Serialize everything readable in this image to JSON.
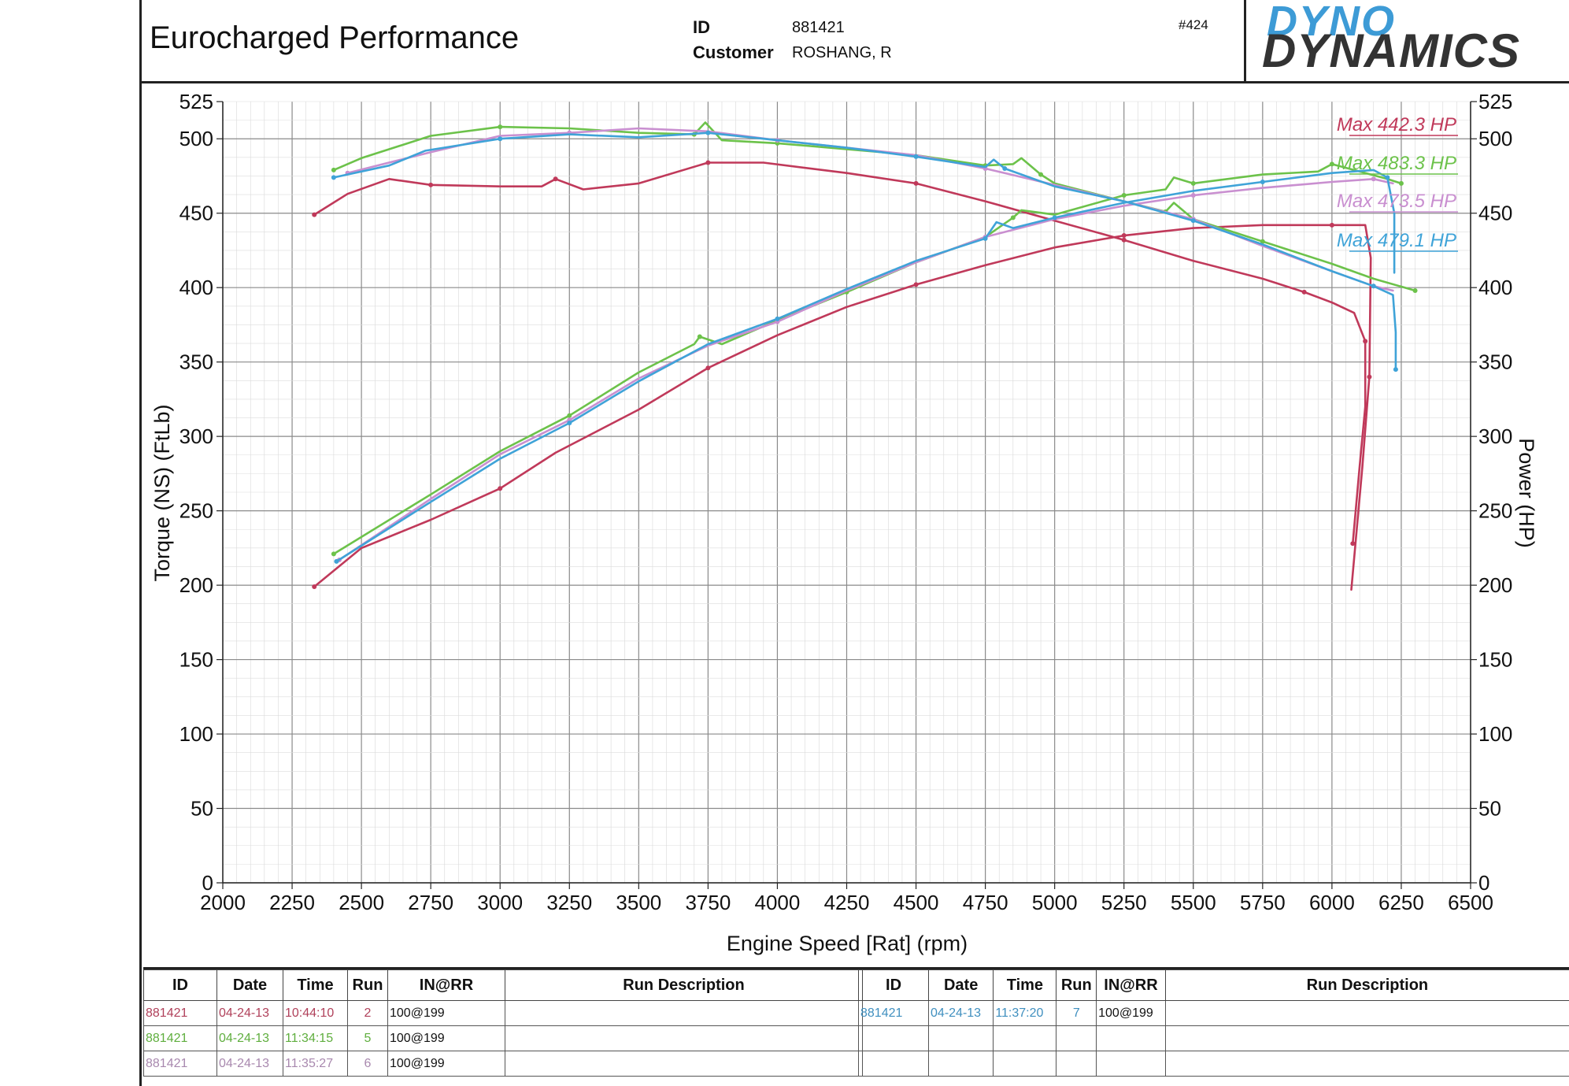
{
  "header": {
    "company": "Eurocharged Performance",
    "id_label": "ID",
    "id_value": "881421",
    "customer_label": "Customer",
    "customer_value": "ROSHANG, R",
    "sheet_number": "#424",
    "logo_line1": "DYNO",
    "logo_line2": "DYNAMICS"
  },
  "colors": {
    "run2": "#c0395a",
    "run5": "#6cc24a",
    "run6": "#c98fd0",
    "run7": "#3fa3d8",
    "grid": "#a0a0a0"
  },
  "chart_data": {
    "type": "line",
    "xlabel": "Engine Speed [Rat] (rpm)",
    "ylabel_left": "Torque (NS) (FtLb)",
    "ylabel_right": "Power (HP)",
    "xlim": [
      2000,
      6500
    ],
    "ylim": [
      0,
      525
    ],
    "x_ticks": [
      2000,
      2250,
      2500,
      2750,
      3000,
      3250,
      3500,
      3750,
      4000,
      4250,
      4500,
      4750,
      5000,
      5250,
      5500,
      5750,
      6000,
      6250,
      6500
    ],
    "y_ticks": [
      0,
      50,
      100,
      150,
      200,
      250,
      300,
      350,
      400,
      450,
      500,
      525
    ],
    "grid": true,
    "legend_position": "top-right",
    "series": [
      {
        "name": "Max 442.3 HP",
        "run": "2",
        "torque": [
          [
            2330,
            449
          ],
          [
            2450,
            463
          ],
          [
            2600,
            473
          ],
          [
            2750,
            469
          ],
          [
            3000,
            468
          ],
          [
            3150,
            468
          ],
          [
            3200,
            473
          ],
          [
            3300,
            466
          ],
          [
            3500,
            470
          ],
          [
            3750,
            484
          ],
          [
            3950,
            484
          ],
          [
            4250,
            477
          ],
          [
            4500,
            470
          ],
          [
            4750,
            458
          ],
          [
            5000,
            445
          ],
          [
            5250,
            432
          ],
          [
            5500,
            418
          ],
          [
            5750,
            406
          ],
          [
            5900,
            397
          ],
          [
            6000,
            390
          ],
          [
            6080,
            383
          ],
          [
            6120,
            364
          ],
          [
            6120,
            320
          ],
          [
            6100,
            280
          ],
          [
            6075,
            228
          ]
        ],
        "power": [
          [
            2330,
            199
          ],
          [
            2500,
            225
          ],
          [
            2750,
            244
          ],
          [
            3000,
            265
          ],
          [
            3200,
            289
          ],
          [
            3500,
            318
          ],
          [
            3750,
            346
          ],
          [
            4000,
            368
          ],
          [
            4250,
            387
          ],
          [
            4500,
            402
          ],
          [
            4750,
            415
          ],
          [
            5000,
            427
          ],
          [
            5250,
            435
          ],
          [
            5500,
            440
          ],
          [
            5750,
            442
          ],
          [
            6000,
            442
          ],
          [
            6120,
            442
          ],
          [
            6140,
            420
          ],
          [
            6135,
            340
          ],
          [
            6110,
            280
          ],
          [
            6070,
            197
          ]
        ]
      },
      {
        "name": "Max 483.3 HP",
        "run": "5",
        "torque": [
          [
            2400,
            479
          ],
          [
            2500,
            487
          ],
          [
            2750,
            502
          ],
          [
            3000,
            508
          ],
          [
            3250,
            507
          ],
          [
            3500,
            504
          ],
          [
            3700,
            503
          ],
          [
            3740,
            511
          ],
          [
            3800,
            499
          ],
          [
            4000,
            497
          ],
          [
            4250,
            493
          ],
          [
            4500,
            489
          ],
          [
            4750,
            482
          ],
          [
            4850,
            483
          ],
          [
            4880,
            487
          ],
          [
            4950,
            476
          ],
          [
            5000,
            470
          ],
          [
            5250,
            458
          ],
          [
            5400,
            451
          ],
          [
            5430,
            457
          ],
          [
            5500,
            446
          ],
          [
            5750,
            431
          ],
          [
            6000,
            416
          ],
          [
            6150,
            406
          ],
          [
            6300,
            398
          ]
        ],
        "power": [
          [
            2400,
            221
          ],
          [
            2750,
            261
          ],
          [
            3000,
            290
          ],
          [
            3250,
            314
          ],
          [
            3500,
            343
          ],
          [
            3700,
            362
          ],
          [
            3720,
            367
          ],
          [
            3800,
            362
          ],
          [
            4000,
            378
          ],
          [
            4250,
            397
          ],
          [
            4500,
            417
          ],
          [
            4750,
            434
          ],
          [
            4850,
            447
          ],
          [
            4880,
            452
          ],
          [
            5000,
            449
          ],
          [
            5250,
            462
          ],
          [
            5400,
            466
          ],
          [
            5430,
            474
          ],
          [
            5500,
            470
          ],
          [
            5750,
            476
          ],
          [
            5950,
            478
          ],
          [
            6000,
            483
          ],
          [
            6100,
            478
          ],
          [
            6200,
            473
          ],
          [
            6250,
            470
          ]
        ]
      },
      {
        "name": "Max 473.5 HP",
        "run": "6",
        "torque": [
          [
            2450,
            477
          ],
          [
            2750,
            491
          ],
          [
            3000,
            502
          ],
          [
            3250,
            504
          ],
          [
            3500,
            507
          ],
          [
            3750,
            505
          ],
          [
            4000,
            499
          ],
          [
            4250,
            494
          ],
          [
            4500,
            489
          ],
          [
            4750,
            480
          ],
          [
            5000,
            469
          ],
          [
            5250,
            458
          ],
          [
            5500,
            446
          ],
          [
            5750,
            428
          ],
          [
            6000,
            411
          ],
          [
            6150,
            401
          ],
          [
            6220,
            398
          ]
        ],
        "power": [
          [
            2420,
            217
          ],
          [
            2750,
            258
          ],
          [
            3000,
            288
          ],
          [
            3250,
            311
          ],
          [
            3500,
            339
          ],
          [
            3750,
            361
          ],
          [
            4000,
            377
          ],
          [
            4250,
            398
          ],
          [
            4500,
            417
          ],
          [
            4750,
            434
          ],
          [
            5000,
            446
          ],
          [
            5250,
            455
          ],
          [
            5500,
            462
          ],
          [
            5750,
            467
          ],
          [
            6000,
            471
          ],
          [
            6150,
            473
          ],
          [
            6220,
            470
          ]
        ]
      },
      {
        "name": "Max 479.1 HP",
        "run": "7",
        "torque": [
          [
            2400,
            474
          ],
          [
            2600,
            482
          ],
          [
            2730,
            492
          ],
          [
            3000,
            500
          ],
          [
            3250,
            503
          ],
          [
            3500,
            501
          ],
          [
            3750,
            504
          ],
          [
            4000,
            499
          ],
          [
            4250,
            494
          ],
          [
            4500,
            488
          ],
          [
            4750,
            481
          ],
          [
            4780,
            486
          ],
          [
            4820,
            480
          ],
          [
            5000,
            468
          ],
          [
            5250,
            458
          ],
          [
            5500,
            445
          ],
          [
            5750,
            429
          ],
          [
            6000,
            411
          ],
          [
            6150,
            401
          ],
          [
            6220,
            395
          ],
          [
            6230,
            370
          ],
          [
            6230,
            345
          ]
        ],
        "power": [
          [
            2410,
            216
          ],
          [
            2750,
            256
          ],
          [
            3000,
            285
          ],
          [
            3250,
            309
          ],
          [
            3500,
            337
          ],
          [
            3750,
            362
          ],
          [
            4000,
            379
          ],
          [
            4250,
            399
          ],
          [
            4500,
            418
          ],
          [
            4750,
            433
          ],
          [
            4790,
            444
          ],
          [
            4850,
            440
          ],
          [
            5000,
            447
          ],
          [
            5250,
            457
          ],
          [
            5500,
            465
          ],
          [
            5750,
            471
          ],
          [
            6000,
            477
          ],
          [
            6150,
            479
          ],
          [
            6200,
            474
          ],
          [
            6225,
            450
          ],
          [
            6225,
            410
          ]
        ]
      }
    ]
  },
  "table": {
    "headers": [
      "ID",
      "Date",
      "Time",
      "Run",
      "IN@RR",
      "Run Description"
    ],
    "left_rows": [
      {
        "id": "881421",
        "date": "04-24-13",
        "time": "10:44:10",
        "run": "2",
        "inrr": "100@199",
        "desc": "",
        "color": "#b0405a"
      },
      {
        "id": "881421",
        "date": "04-24-13",
        "time": "11:34:15",
        "run": "5",
        "inrr": "100@199",
        "desc": "",
        "color": "#5fae3e"
      },
      {
        "id": "881421",
        "date": "04-24-13",
        "time": "11:35:27",
        "run": "6",
        "inrr": "100@199",
        "desc": "",
        "color": "#a888ae"
      }
    ],
    "right_rows": [
      {
        "id": "881421",
        "date": "04-24-13",
        "time": "11:37:20",
        "run": "7",
        "inrr": "100@199",
        "desc": "",
        "color": "#3f8fbf"
      },
      {
        "id": "",
        "date": "",
        "time": "",
        "run": "",
        "inrr": "",
        "desc": "",
        "color": "#333"
      },
      {
        "id": "",
        "date": "",
        "time": "",
        "run": "",
        "inrr": "",
        "desc": "",
        "color": "#333"
      }
    ]
  }
}
